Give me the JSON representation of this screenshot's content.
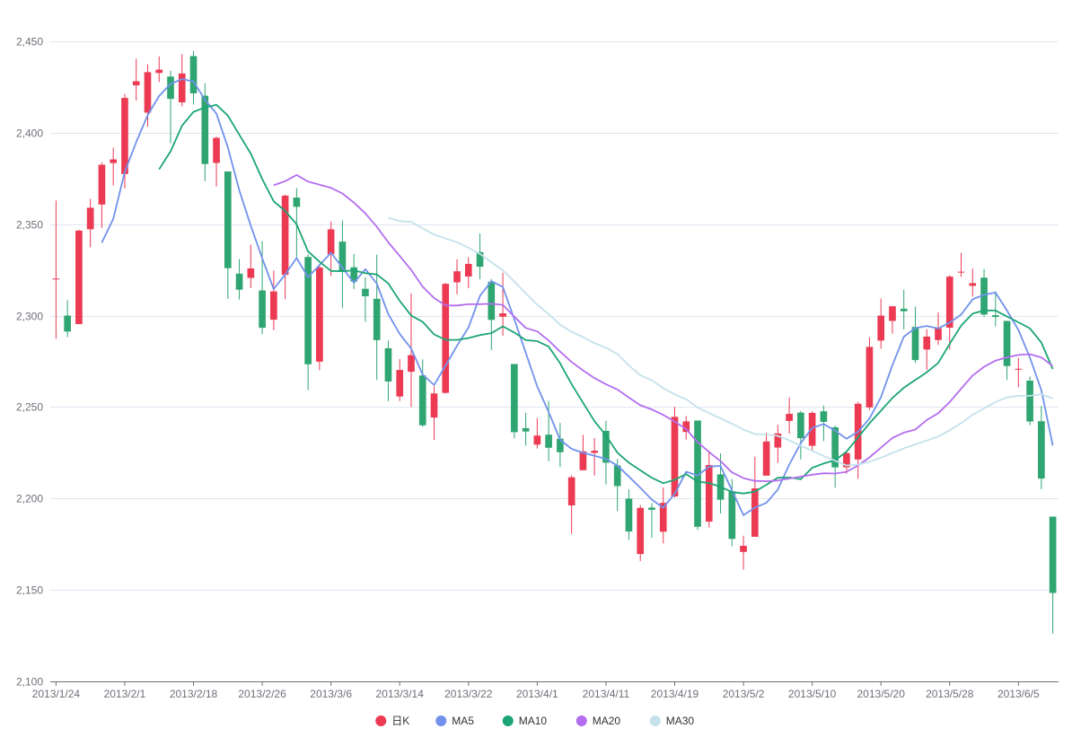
{
  "chart_data": {
    "type": "candlestick",
    "title": "",
    "xlabel": "",
    "ylabel": "",
    "ylim": [
      2100,
      2450
    ],
    "yticks": [
      2100,
      2150,
      2200,
      2250,
      2300,
      2350,
      2400,
      2450
    ],
    "ytick_labels": [
      "2,100",
      "2,150",
      "2,200",
      "2,250",
      "2,300",
      "2,350",
      "2,400",
      "2,450"
    ],
    "grid": true,
    "legend_position": "bottom",
    "up_color": "#ec3a53",
    "down_color": "#2fa571",
    "dates": [
      "2013/1/24",
      "2013/1/25",
      "2013/1/28",
      "2013/1/29",
      "2013/1/30",
      "2013/1/31",
      "2013/2/1",
      "2013/2/4",
      "2013/2/5",
      "2013/2/6",
      "2013/2/7",
      "2013/2/8",
      "2013/2/18",
      "2013/2/19",
      "2013/2/20",
      "2013/2/21",
      "2013/2/22",
      "2013/2/25",
      "2013/2/26",
      "2013/2/27",
      "2013/2/28",
      "2013/3/1",
      "2013/3/4",
      "2013/3/5",
      "2013/3/6",
      "2013/3/7",
      "2013/3/8",
      "2013/3/11",
      "2013/3/12",
      "2013/3/13",
      "2013/3/14",
      "2013/3/15",
      "2013/3/18",
      "2013/3/19",
      "2013/3/20",
      "2013/3/21",
      "2013/3/22",
      "2013/3/25",
      "2013/3/26",
      "2013/3/27",
      "2013/3/28",
      "2013/3/29",
      "2013/4/1",
      "2013/4/2",
      "2013/4/3",
      "2013/4/8",
      "2013/4/9",
      "2013/4/10",
      "2013/4/11",
      "2013/4/12",
      "2013/4/15",
      "2013/4/16",
      "2013/4/17",
      "2013/4/18",
      "2013/4/19",
      "2013/4/22",
      "2013/4/23",
      "2013/4/24",
      "2013/4/25",
      "2013/4/26",
      "2013/5/2",
      "2013/5/3",
      "2013/5/6",
      "2013/5/7",
      "2013/5/8",
      "2013/5/9",
      "2013/5/10",
      "2013/5/13",
      "2013/5/14",
      "2013/5/15",
      "2013/5/16",
      "2013/5/17",
      "2013/5/20",
      "2013/5/21",
      "2013/5/22",
      "2013/5/23",
      "2013/5/24",
      "2013/5/27",
      "2013/5/28",
      "2013/5/29",
      "2013/5/30",
      "2013/5/31",
      "2013/6/3",
      "2013/6/4",
      "2013/6/5",
      "2013/6/6",
      "2013/6/7",
      "2013/6/13"
    ],
    "xtick_labels": [
      "2013/1/24",
      "2013/2/1",
      "2013/2/18",
      "2013/2/26",
      "2013/3/6",
      "2013/3/14",
      "2013/3/22",
      "2013/4/1",
      "2013/4/11",
      "2013/4/19",
      "2013/5/2",
      "2013/5/10",
      "2013/5/20",
      "2013/5/28",
      "2013/6/5"
    ],
    "ohlc": [
      [
        2320.26,
        2320.26,
        2287.3,
        2362.94
      ],
      [
        2300,
        2291.3,
        2288.26,
        2308.38
      ],
      [
        2295.35,
        2346.5,
        2295.35,
        2346.92
      ],
      [
        2347.22,
        2358.98,
        2337.35,
        2363.8
      ],
      [
        2360.75,
        2382.48,
        2347.89,
        2383.76
      ],
      [
        2383.43,
        2385.42,
        2371.23,
        2391.82
      ],
      [
        2377.41,
        2419.02,
        2369.57,
        2421.15
      ],
      [
        2425.92,
        2428.15,
        2417.58,
        2440.38
      ],
      [
        2411,
        2433.13,
        2403.3,
        2437.42
      ],
      [
        2432.68,
        2434.48,
        2427.7,
        2441.73
      ],
      [
        2430.69,
        2418.53,
        2394.22,
        2433.89
      ],
      [
        2416.62,
        2432.4,
        2414.4,
        2443.03
      ],
      [
        2441.91,
        2421.56,
        2415.43,
        2444.8
      ],
      [
        2420.26,
        2382.91,
        2373.53,
        2427.07
      ],
      [
        2383.49,
        2397.18,
        2370.61,
        2397.94
      ],
      [
        2378.82,
        2325.95,
        2309.17,
        2378.82
      ],
      [
        2322.94,
        2314.16,
        2308.76,
        2330.88
      ],
      [
        2320.62,
        2325.82,
        2315.01,
        2338.78
      ],
      [
        2313.74,
        2293.34,
        2289.89,
        2340.71
      ],
      [
        2297.77,
        2313.22,
        2292.03,
        2324.63
      ],
      [
        2322.32,
        2365.59,
        2308.92,
        2366.16
      ],
      [
        2364.54,
        2359.51,
        2330.86,
        2369.65
      ],
      [
        2332.08,
        2273.4,
        2259.25,
        2333.54
      ],
      [
        2274.81,
        2326.31,
        2270.1,
        2328.14
      ],
      [
        2333.61,
        2347.18,
        2321.6,
        2351.44
      ],
      [
        2340.44,
        2324.29,
        2304.27,
        2352.02
      ],
      [
        2326.42,
        2318.61,
        2314.59,
        2333.67
      ],
      [
        2314.68,
        2310.59,
        2296.58,
        2320.96
      ],
      [
        2309.16,
        2286.6,
        2264.83,
        2333.29
      ],
      [
        2282.17,
        2263.97,
        2253.25,
        2286.33
      ],
      [
        2255.77,
        2270.28,
        2253.31,
        2276.22
      ],
      [
        2269.31,
        2278.4,
        2250,
        2312.08
      ],
      [
        2267.29,
        2240.02,
        2239.21,
        2276.05
      ],
      [
        2244.26,
        2257.43,
        2232.02,
        2261.31
      ],
      [
        2257.74,
        2317.37,
        2257.42,
        2317.86
      ],
      [
        2318.21,
        2324.24,
        2311.6,
        2330.81
      ],
      [
        2321.4,
        2328.28,
        2314.97,
        2332
      ],
      [
        2334.74,
        2326.72,
        2319.91,
        2344.89
      ],
      [
        2318.58,
        2297.67,
        2281.12,
        2319.99
      ],
      [
        2299.38,
        2301.26,
        2289,
        2323.48
      ],
      [
        2273.55,
        2236.3,
        2232.91,
        2273.55
      ],
      [
        2238.49,
        2236.62,
        2228.81,
        2246.87
      ],
      [
        2229.46,
        2234.4,
        2227.31,
        2243.95
      ],
      [
        2234.9,
        2227.74,
        2220.44,
        2253.42
      ],
      [
        2232.69,
        2225.29,
        2217.25,
        2241.34
      ],
      [
        2196.24,
        2211.59,
        2180.67,
        2212.59
      ],
      [
        2215.47,
        2225.77,
        2215.47,
        2234.73
      ],
      [
        2224.93,
        2226.13,
        2212.56,
        2233.04
      ],
      [
        2236.98,
        2219.55,
        2207.72,
        2242.48
      ],
      [
        2218.09,
        2206.78,
        2193.08,
        2221.54
      ],
      [
        2199.91,
        2181.94,
        2177.39,
        2204.99
      ],
      [
        2169.63,
        2194.85,
        2165.78,
        2196.43
      ],
      [
        2195.03,
        2193.8,
        2178.47,
        2197.51
      ],
      [
        2181.82,
        2197.6,
        2175.44,
        2206.03
      ],
      [
        2201.12,
        2244.64,
        2200.58,
        2250.11
      ],
      [
        2236.4,
        2242.17,
        2232.26,
        2245.12
      ],
      [
        2242.62,
        2184.54,
        2182.81,
        2242.62
      ],
      [
        2187.35,
        2218.32,
        2184.11,
        2226.12
      ],
      [
        2213.19,
        2199.31,
        2191.85,
        2224.63
      ],
      [
        2203.89,
        2177.91,
        2173.86,
        2210.58
      ],
      [
        2170.78,
        2174.12,
        2161.14,
        2179.65
      ],
      [
        2179.05,
        2205.5,
        2179.05,
        2222.81
      ],
      [
        2212.5,
        2231.17,
        2212.5,
        2236.07
      ],
      [
        2227.86,
        2235.57,
        2219.44,
        2240.26
      ],
      [
        2242.39,
        2246.3,
        2235.42,
        2255.21
      ],
      [
        2246.96,
        2232.97,
        2221.38,
        2247.86
      ],
      [
        2228.82,
        2246.83,
        2225.81,
        2247.67
      ],
      [
        2247.68,
        2241.92,
        2231.36,
        2250.85
      ],
      [
        2238.9,
        2217.01,
        2205.87,
        2239.93
      ],
      [
        2217.09,
        2224.8,
        2213.58,
        2225.19
      ],
      [
        2221.34,
        2251.81,
        2210.77,
        2252.87
      ],
      [
        2249.81,
        2282.87,
        2248.41,
        2288.09
      ],
      [
        2286.33,
        2299.99,
        2281.9,
        2309.39
      ],
      [
        2297.11,
        2305.11,
        2290.12,
        2305.3
      ],
      [
        2303.75,
        2302.4,
        2292.43,
        2314.18
      ],
      [
        2293.81,
        2275.67,
        2274.1,
        2304.95
      ],
      [
        2281.45,
        2288.53,
        2270.25,
        2292.59
      ],
      [
        2286.66,
        2293.08,
        2283.94,
        2301.7
      ],
      [
        2293.4,
        2321.32,
        2281.47,
        2322.1
      ],
      [
        2323.54,
        2324.02,
        2321.17,
        2334.33
      ],
      [
        2316.25,
        2317.75,
        2310.49,
        2325.72
      ],
      [
        2320.74,
        2300.59,
        2299.37,
        2325.53
      ],
      [
        2300.21,
        2299.25,
        2294.11,
        2313.43
      ],
      [
        2297.1,
        2272.42,
        2264.76,
        2297.1
      ],
      [
        2270.71,
        2270.93,
        2260.87,
        2276.86
      ],
      [
        2264.43,
        2242.11,
        2240.07,
        2266.69
      ],
      [
        2242.26,
        2210.9,
        2205.07,
        2250.63
      ],
      [
        2190.1,
        2148.35,
        2126.22,
        2190.1
      ]
    ],
    "series": [
      {
        "name": "日K",
        "color": "#ec3a53"
      },
      {
        "name": "MA5",
        "color": "#7191ec",
        "period": 5
      },
      {
        "name": "MA10",
        "color": "#1ba574",
        "period": 10
      },
      {
        "name": "MA20",
        "color": "#b46def",
        "period": 20
      },
      {
        "name": "MA30",
        "color": "#c4e1ec",
        "period": 30
      }
    ]
  }
}
